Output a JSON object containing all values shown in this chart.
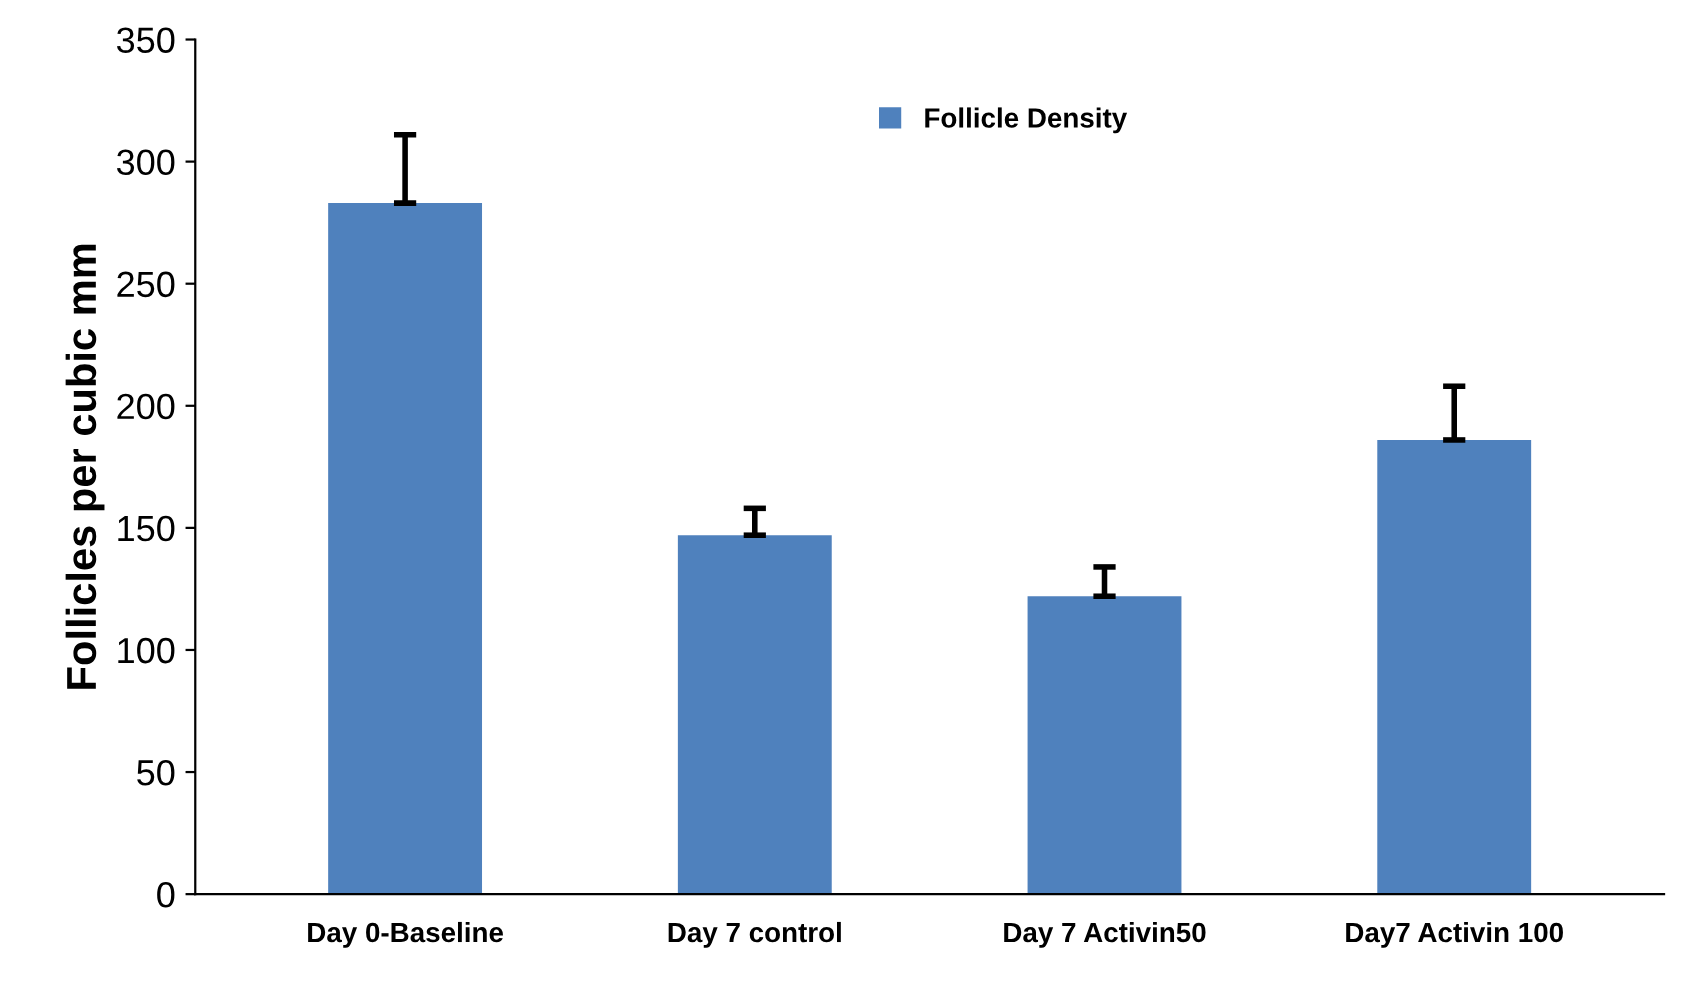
{
  "chart_data": {
    "type": "bar",
    "ylabel": "Follicles per cubic mm",
    "categories": [
      "Day 0-Baseline",
      "Day 7 control",
      "Day 7 Activin50",
      "Day7 Activin 100"
    ],
    "series": [
      {
        "name": "Follicle Density",
        "color": "#4f81bd",
        "values": [
          283,
          147,
          122,
          186
        ],
        "errors": [
          [
            283,
            311
          ],
          [
            147,
            158
          ],
          [
            122,
            134
          ],
          [
            186,
            208
          ]
        ]
      }
    ],
    "ylim": [
      0,
      350
    ],
    "yticks": [
      0,
      50,
      100,
      150,
      200,
      250,
      300,
      350
    ],
    "grid": false,
    "legend": "top"
  }
}
